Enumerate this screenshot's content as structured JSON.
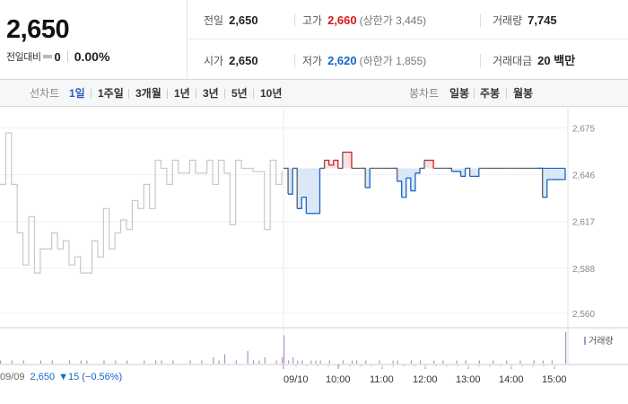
{
  "price": {
    "current": "2,650",
    "change_label": "전일대비",
    "change_value": "0",
    "change_percent": "0.00%"
  },
  "stats": {
    "prev_close": {
      "label": "전일",
      "value": "2,650"
    },
    "open": {
      "label": "시가",
      "value": "2,650"
    },
    "high": {
      "label": "고가",
      "value": "2,660",
      "limit_text": "(상한가 3,445)"
    },
    "low": {
      "label": "저가",
      "value": "2,620",
      "limit_text": "(하한가 1,855)"
    },
    "volume": {
      "label": "거래량",
      "value": "7,745"
    },
    "amount": {
      "label": "거래대금",
      "value": "20 백만"
    }
  },
  "toolbar": {
    "line_label": "선차트",
    "line_periods": [
      "1일",
      "1주일",
      "3개월",
      "1년",
      "3년",
      "5년",
      "10년"
    ],
    "active_period": "1일",
    "candle_label": "봉차트",
    "candle_periods": [
      "일봉",
      "주봉",
      "월봉"
    ]
  },
  "footer": {
    "prev_date": "09/09",
    "prev_close": "2,650",
    "prev_change": "▼15 (−0.56%)",
    "volume_legend": "거래량"
  },
  "colors": {
    "up": "#d7191c",
    "down": "#1366c6",
    "prev_day_line": "#c8c8cc",
    "today_line": "#5a5f6b",
    "up_fill": "#fbe0e1",
    "down_fill": "#dbe7f7",
    "volume_bar": "#b590c8",
    "active_tab": "#2b5dbd"
  },
  "chart_data": {
    "type": "line",
    "title": "",
    "ylim": [
      2555,
      2682
    ],
    "yticks": [
      2675,
      2646,
      2617,
      2588,
      2560
    ],
    "y_tick_labels": [
      "2,675",
      "2,646",
      "2,617",
      "2,588",
      "2,560"
    ],
    "baseline": 2650,
    "x_tick_labels": [
      "09/10",
      "10:00",
      "11:00",
      "12:00",
      "13:00",
      "14:00",
      "15:00"
    ],
    "grid": true,
    "series": [
      {
        "role": "previous_day",
        "points": [
          [
            0,
            2640
          ],
          [
            1,
            2672
          ],
          [
            2,
            2640
          ],
          [
            3,
            2610
          ],
          [
            4,
            2590
          ],
          [
            5,
            2620
          ],
          [
            6,
            2585
          ],
          [
            7,
            2600
          ],
          [
            8,
            2600
          ],
          [
            9,
            2610
          ],
          [
            10,
            2600
          ],
          [
            11,
            2605
          ],
          [
            12,
            2590
          ],
          [
            13,
            2595
          ],
          [
            14,
            2585
          ],
          [
            15,
            2585
          ],
          [
            16,
            2605
          ],
          [
            17,
            2595
          ],
          [
            18,
            2625
          ],
          [
            19,
            2600
          ],
          [
            20,
            2610
          ],
          [
            21,
            2618
          ],
          [
            22,
            2612
          ],
          [
            23,
            2630
          ],
          [
            24,
            2625
          ],
          [
            25,
            2640
          ],
          [
            26,
            2625
          ],
          [
            27,
            2655
          ],
          [
            28,
            2650
          ],
          [
            29,
            2640
          ],
          [
            30,
            2655
          ],
          [
            31,
            2647
          ],
          [
            32,
            2647
          ],
          [
            33,
            2655
          ],
          [
            34,
            2647
          ],
          [
            35,
            2647
          ],
          [
            36,
            2655
          ],
          [
            37,
            2640
          ],
          [
            38,
            2655
          ],
          [
            39,
            2647
          ],
          [
            40,
            2615
          ],
          [
            41,
            2655
          ],
          [
            42,
            2650
          ],
          [
            43,
            2650
          ],
          [
            44,
            2648
          ],
          [
            45,
            2648
          ],
          [
            46,
            2612
          ],
          [
            47,
            2655
          ],
          [
            48,
            2640
          ],
          [
            49,
            2648
          ]
        ]
      },
      {
        "role": "today",
        "points": [
          [
            0,
            2650
          ],
          [
            1,
            2634
          ],
          [
            2,
            2650
          ],
          [
            3,
            2625
          ],
          [
            4,
            2632
          ],
          [
            5,
            2622
          ],
          [
            6,
            2622
          ],
          [
            7,
            2622
          ],
          [
            8,
            2650
          ],
          [
            9,
            2655
          ],
          [
            10,
            2652
          ],
          [
            11,
            2655
          ],
          [
            12,
            2650
          ],
          [
            13,
            2660
          ],
          [
            14,
            2660
          ],
          [
            15,
            2650
          ],
          [
            16,
            2650
          ],
          [
            17,
            2650
          ],
          [
            18,
            2638
          ],
          [
            19,
            2650
          ],
          [
            20,
            2650
          ],
          [
            21,
            2650
          ],
          [
            22,
            2650
          ],
          [
            23,
            2650
          ],
          [
            24,
            2650
          ],
          [
            25,
            2642
          ],
          [
            26,
            2632
          ],
          [
            27,
            2644
          ],
          [
            28,
            2636
          ],
          [
            29,
            2647
          ],
          [
            30,
            2650
          ],
          [
            31,
            2655
          ],
          [
            32,
            2655
          ],
          [
            33,
            2650
          ],
          [
            34,
            2650
          ],
          [
            35,
            2650
          ],
          [
            36,
            2650
          ],
          [
            37,
            2648
          ],
          [
            38,
            2648
          ],
          [
            39,
            2645
          ],
          [
            40,
            2650
          ],
          [
            41,
            2645
          ],
          [
            42,
            2645
          ],
          [
            43,
            2650
          ],
          [
            44,
            2650
          ],
          [
            45,
            2650
          ],
          [
            46,
            2650
          ],
          [
            47,
            2650
          ],
          [
            48,
            2650
          ],
          [
            49,
            2650
          ],
          [
            50,
            2650
          ],
          [
            51,
            2650
          ],
          [
            52,
            2650
          ],
          [
            53,
            2650
          ],
          [
            54,
            2650
          ],
          [
            55,
            2650
          ],
          [
            56,
            2650
          ],
          [
            57,
            2632
          ],
          [
            58,
            2643
          ],
          [
            59,
            2643
          ],
          [
            60,
            2643
          ],
          [
            61,
            2643
          ],
          [
            62,
            2650
          ]
        ]
      }
    ],
    "volume": {
      "label": "거래량",
      "previous_day_bars": [
        1,
        0,
        1,
        0,
        1,
        0,
        0,
        1,
        0,
        1,
        0,
        0,
        1,
        0,
        1,
        1,
        0,
        0,
        1,
        0,
        1,
        0,
        1,
        0,
        0,
        1,
        0,
        1,
        1,
        0,
        1,
        0,
        0,
        1,
        0,
        1,
        0,
        2,
        1,
        3,
        0,
        1,
        0,
        4,
        1,
        1,
        2,
        0,
        1,
        2
      ],
      "today_bars": [
        9,
        1,
        2,
        1,
        1,
        0,
        1,
        1,
        1,
        0,
        1,
        0,
        0,
        1,
        0,
        1,
        1,
        0,
        1,
        0,
        0,
        1,
        0,
        0,
        1,
        1,
        0,
        0,
        1,
        0,
        1,
        0,
        0,
        1,
        0,
        1,
        0,
        0,
        1,
        0,
        1,
        0,
        0,
        1,
        0,
        0,
        1,
        0,
        0,
        1,
        0,
        0,
        1,
        0,
        0,
        1,
        0,
        1,
        0,
        1,
        0,
        0,
        10
      ]
    }
  }
}
